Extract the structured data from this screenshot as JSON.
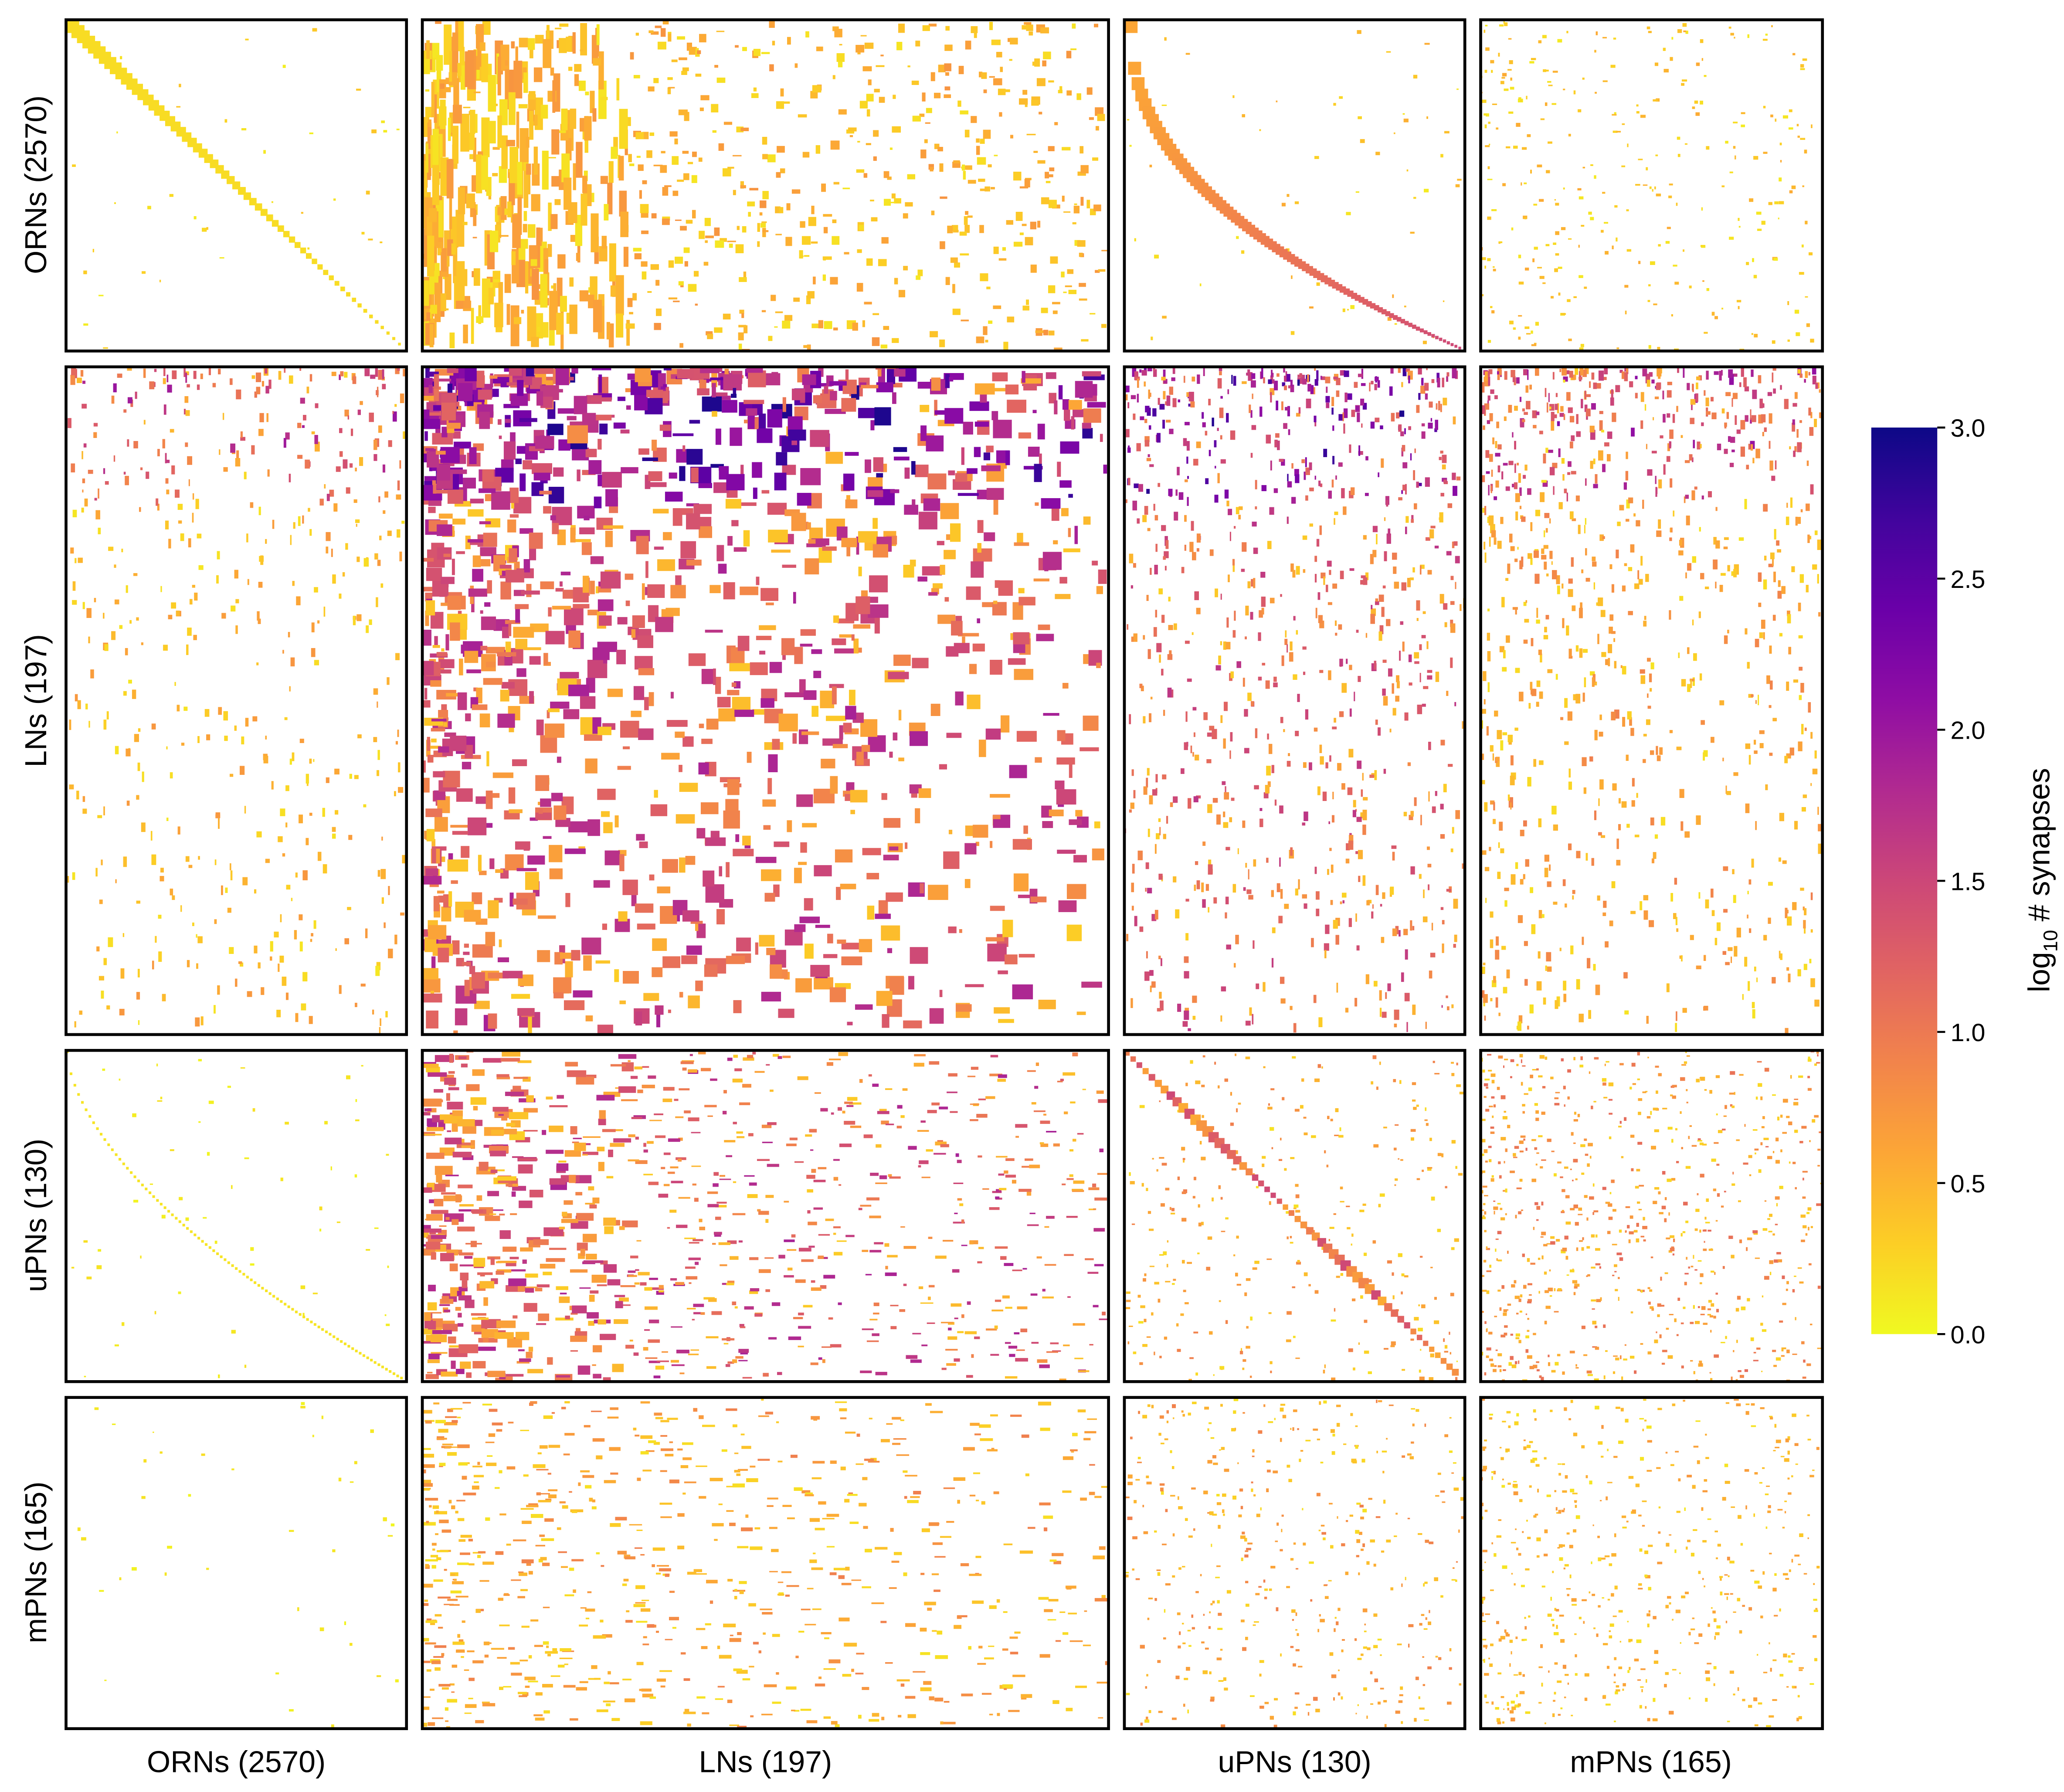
{
  "chart_data": {
    "type": "heatmap",
    "title": "",
    "row_groups": [
      {
        "label": "ORNs (2570)",
        "name": "ORNs",
        "count": 2570
      },
      {
        "label": "LNs (197)",
        "name": "LNs",
        "count": 197
      },
      {
        "label": "uPNs (130)",
        "name": "uPNs",
        "count": 130
      },
      {
        "label": "mPNs (165)",
        "name": "mPNs",
        "count": 165
      }
    ],
    "col_groups": [
      {
        "label": "ORNs (2570)",
        "name": "ORNs",
        "count": 2570
      },
      {
        "label": "LNs (197)",
        "name": "LNs",
        "count": 197
      },
      {
        "label": "uPNs (130)",
        "name": "uPNs",
        "count": 130
      },
      {
        "label": "mPNs (165)",
        "name": "mPNs",
        "count": 165
      }
    ],
    "colorbar": {
      "label_prefix": "log",
      "label_sub": "10",
      "label_suffix": " # synapses",
      "range": [
        0.0,
        3.0
      ],
      "ticks": [
        "0.0",
        "0.5",
        "1.0",
        "1.5",
        "2.0",
        "2.5",
        "3.0"
      ],
      "colormap": "plasma_r"
    }
  }
}
